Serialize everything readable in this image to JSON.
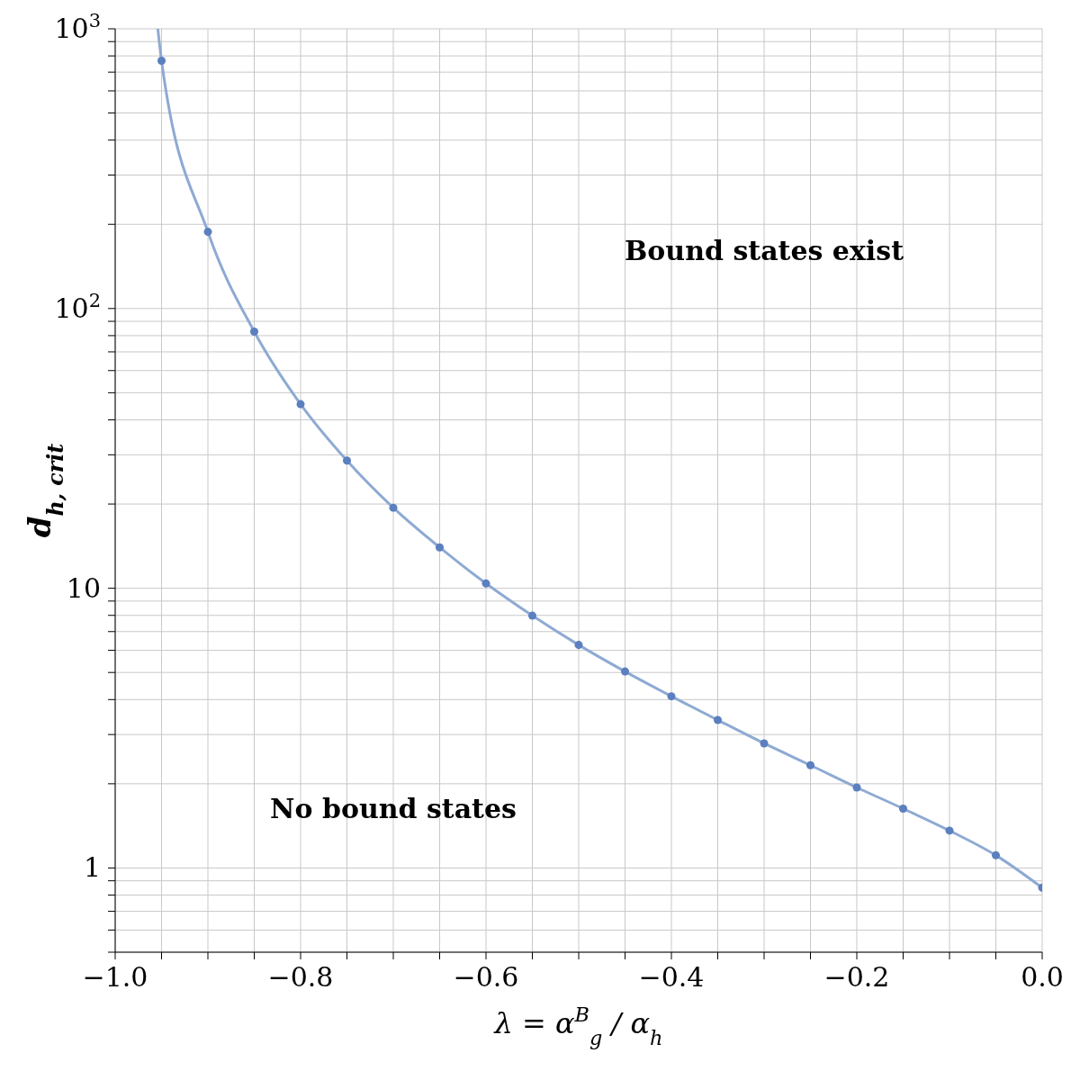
{
  "chart_data": {
    "type": "line",
    "log": "y",
    "grid": true,
    "xlabel": "λ = α$^{B}$$_{g}$ / α$_{h}$",
    "ylabel": "d$_{h, crit}$",
    "xlim": [
      -1.0,
      0.0
    ],
    "ylim": [
      0.5,
      1000
    ],
    "xticks": [
      {
        "value": -1.0,
        "label": "−1.0"
      },
      {
        "value": -0.95,
        "label": null
      },
      {
        "value": -0.9,
        "label": null
      },
      {
        "value": -0.85,
        "label": null
      },
      {
        "value": -0.8,
        "label": "−0.8"
      },
      {
        "value": -0.75,
        "label": null
      },
      {
        "value": -0.7,
        "label": null
      },
      {
        "value": -0.65,
        "label": null
      },
      {
        "value": -0.6,
        "label": "−0.6"
      },
      {
        "value": -0.55,
        "label": null
      },
      {
        "value": -0.5,
        "label": null
      },
      {
        "value": -0.45,
        "label": null
      },
      {
        "value": -0.4,
        "label": "−0.4"
      },
      {
        "value": -0.35,
        "label": null
      },
      {
        "value": -0.3,
        "label": null
      },
      {
        "value": -0.25,
        "label": null
      },
      {
        "value": -0.2,
        "label": "−0.2"
      },
      {
        "value": -0.15,
        "label": null
      },
      {
        "value": -0.1,
        "label": null
      },
      {
        "value": -0.05,
        "label": null
      },
      {
        "value": 0.0,
        "label": "0.0"
      }
    ],
    "yticks": [
      {
        "value": 0.5,
        "label": null
      },
      {
        "value": 0.6,
        "label": null
      },
      {
        "value": 0.7,
        "label": null
      },
      {
        "value": 0.8,
        "label": null
      },
      {
        "value": 0.9,
        "label": null
      },
      1,
      {
        "value": 2,
        "label": null
      },
      {
        "value": 3,
        "label": null
      },
      {
        "value": 4,
        "label": null
      },
      {
        "value": 5,
        "label": null
      },
      {
        "value": 6,
        "label": null
      },
      {
        "value": 7,
        "label": null
      },
      {
        "value": 8,
        "label": null
      },
      {
        "value": 9,
        "label": null
      },
      10,
      {
        "value": 20,
        "label": null
      },
      {
        "value": 30,
        "label": null
      },
      {
        "value": 40,
        "label": null
      },
      {
        "value": 50,
        "label": null
      },
      {
        "value": 60,
        "label": null
      },
      {
        "value": 70,
        "label": null
      },
      {
        "value": 80,
        "label": null
      },
      {
        "value": 90,
        "label": null
      },
      {
        "value": 100,
        "label": "10$^{2}$"
      },
      {
        "value": 200,
        "label": null
      },
      {
        "value": 300,
        "label": null
      },
      {
        "value": 400,
        "label": null
      },
      {
        "value": 500,
        "label": null
      },
      {
        "value": 600,
        "label": null
      },
      {
        "value": 700,
        "label": null
      },
      {
        "value": 800,
        "label": null
      },
      {
        "value": 900,
        "label": null
      },
      {
        "value": 1000,
        "label": "10$^{3}$"
      }
    ],
    "annotations": [
      "Bound states exist",
      "No bound states"
    ],
    "series": [
      {
        "marker": "none",
        "color": "#8eaad3",
        "x": [
          -0.954,
          -0.95,
          -0.9,
          -0.85,
          -0.8,
          -0.75,
          -0.7,
          -0.65,
          -0.6,
          -0.55,
          -0.5,
          -0.45,
          -0.4,
          -0.35,
          -0.3,
          -0.25,
          -0.2,
          -0.15,
          -0.1,
          -0.05,
          0.0
        ],
        "values": [
          1000,
          769,
          188,
          82.7,
          45.5,
          28.6,
          19.4,
          14.0,
          10.4,
          7.98,
          6.27,
          5.04,
          4.11,
          3.38,
          2.79,
          2.33,
          1.94,
          1.63,
          1.36,
          1.11,
          0.85
        ]
      },
      {
        "type": "scatter",
        "marker": "circle",
        "color": "#5b7fbf",
        "x": [
          -0.95,
          -0.9,
          -0.85,
          -0.8,
          -0.75,
          -0.7,
          -0.65,
          -0.6,
          -0.55,
          -0.5,
          -0.45,
          -0.4,
          -0.35,
          -0.3,
          -0.25,
          -0.2,
          -0.15,
          -0.1,
          -0.05,
          0.0
        ],
        "values": [
          769,
          188,
          82.7,
          45.5,
          28.6,
          19.4,
          14.0,
          10.4,
          7.98,
          6.27,
          5.04,
          4.11,
          3.38,
          2.79,
          2.33,
          1.94,
          1.63,
          1.36,
          1.11,
          0.85
        ]
      }
    ]
  }
}
